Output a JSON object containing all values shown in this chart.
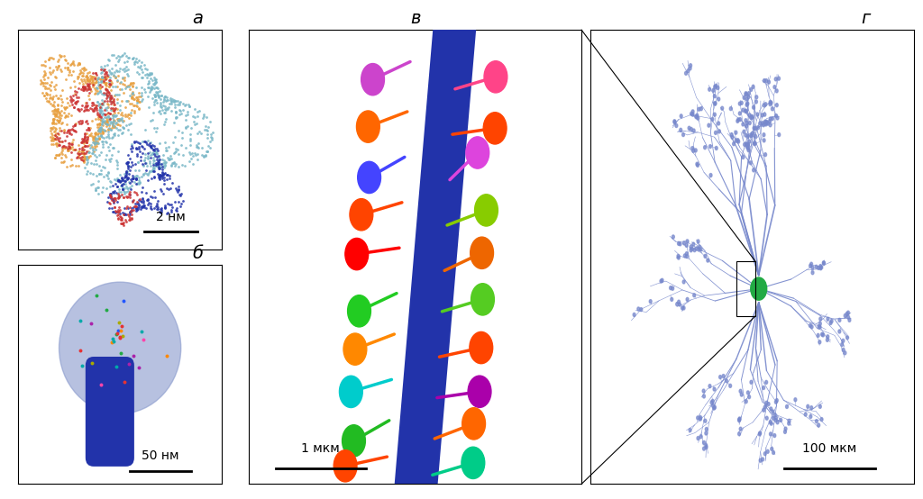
{
  "bg_color": "#ffffff",
  "label_a": "а",
  "label_b": "б",
  "label_v": "в",
  "label_g": "г",
  "scale_2nm": "2 нм",
  "scale_50nm": "50 нм",
  "scale_1mkm": "1 мкм",
  "scale_100mkm": "100 мкм",
  "dendrite_color": "#2233aa",
  "neuron_dendrite_color": "#7788cc",
  "soma_color": "#22aa44",
  "spine_head_color": "#8899cc",
  "spine_neck_color": "#2233aa",
  "receptor_colors": [
    "#e63333",
    "#ff8800",
    "#22aa44",
    "#2255ff",
    "#aa22aa",
    "#00aaaa",
    "#aaaa00",
    "#ff44aa"
  ],
  "nmda_colors": [
    "#e8a040",
    "#7ab8c8",
    "#cc3333",
    "#2233aa"
  ],
  "font_size_label": 14,
  "font_size_scale": 10
}
